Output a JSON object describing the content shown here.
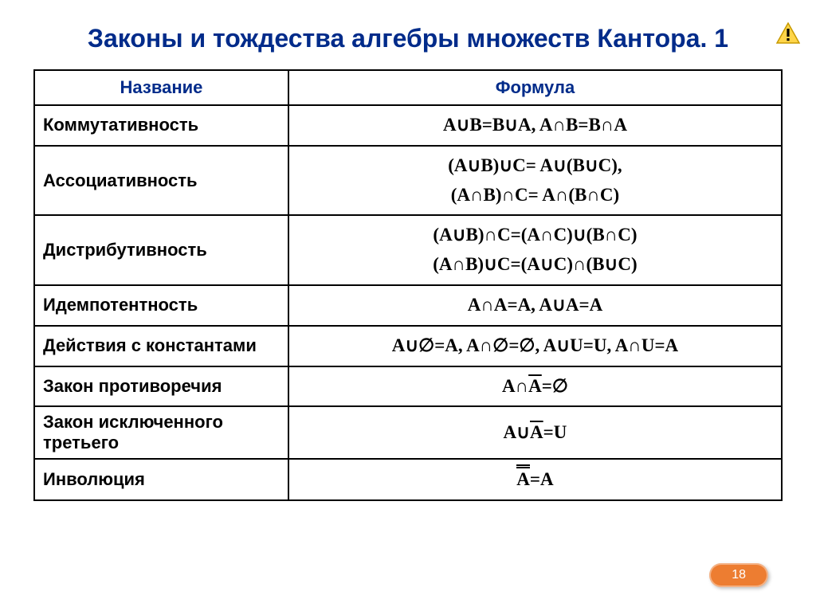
{
  "title": "Законы и тождества алгебры множеств Кантора. 1",
  "headers": {
    "name": "Название",
    "formula": "Формула"
  },
  "rows": [
    {
      "name": "Коммутативность",
      "formula": "A∪B=B∪A, A∩B=B∩A"
    },
    {
      "name": "Ассоциативность",
      "formula": "(A∪B)∪C= A∪(B∪C),\n(A∩B)∩C= A∩(B∩C)"
    },
    {
      "name": "Дистрибутивность",
      "formula": "(A∪B)∩C=(A∩C)∪(B∩C)\n(A∩B)∪C=(A∪C)∩(B∪C)"
    },
    {
      "name": "Идемпотентность",
      "formula": "A∩A=A, A∪A=A"
    },
    {
      "name": "Действия с константами",
      "formula": "A∪∅=A, A∩∅=∅, A∪U=U, A∩U=A"
    },
    {
      "name": "Закон противоречия",
      "formula": "A∩<ov>A</ov>=∅"
    },
    {
      "name": "Закон исключенного третьего",
      "formula": "A∪<ov>A</ov>=U"
    },
    {
      "name": "Инволюция",
      "formula": "<dov>A</dov>=A"
    }
  ],
  "page_number": "18",
  "style": {
    "title_color": "#002b8a",
    "title_fontsize": 32,
    "header_color": "#002b8a",
    "border_color": "#000000",
    "name_col_width_pct": 34,
    "formula_col_width_pct": 66,
    "cell_fontsize": 22,
    "formula_fontsize": 23,
    "formula_font": "Times New Roman",
    "badge_bg": "#ed7d31",
    "badge_fg": "#ffffff",
    "background": "#ffffff"
  }
}
